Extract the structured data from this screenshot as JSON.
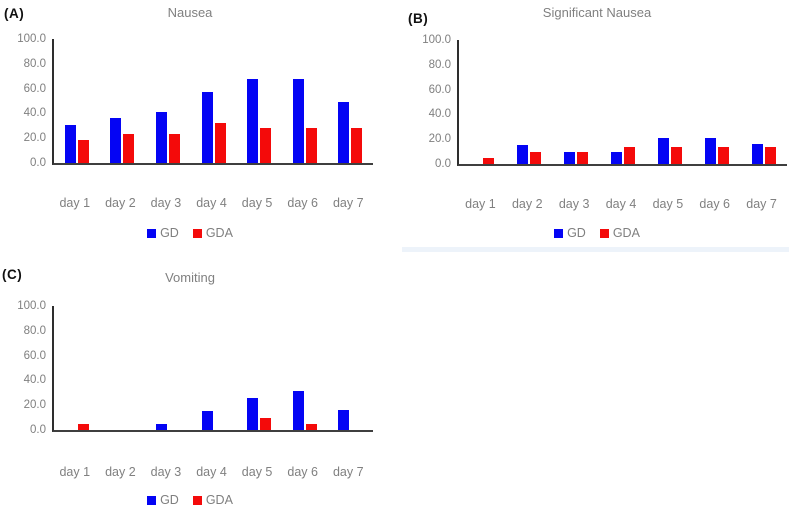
{
  "figure": {
    "background": "#ffffff",
    "divider_band_color": "#edf3fa"
  },
  "colors": {
    "gd": "#0404f4",
    "gda": "#f40a0a",
    "axis": "#2e2e2e",
    "label_text": "#7f7f7f",
    "title_text": "#808080",
    "panel_letter": "#111111"
  },
  "chart_data": [
    {
      "type": "bar",
      "panel_label": "(A)",
      "title": "Nausea",
      "categories": [
        "day 1",
        "day 2",
        "day 3",
        "day 4",
        "day 5",
        "day 6",
        "day 7"
      ],
      "series": [
        {
          "name": "GD",
          "color_key": "gd",
          "values": [
            31.0,
            36.0,
            41.5,
            57.0,
            68.0,
            68.0,
            49.0
          ]
        },
        {
          "name": "GDA",
          "color_key": "gda",
          "values": [
            18.5,
            23.5,
            23.5,
            32.5,
            28.5,
            28.5,
            28.5
          ]
        }
      ],
      "ylim": [
        0,
        100
      ],
      "ytick_labels": [
        "100.0",
        "80.0",
        "60.0",
        "40.0",
        "20.0",
        "0.0"
      ],
      "grid": false,
      "legend_position": "bottom"
    },
    {
      "type": "bar",
      "panel_label": "(B)",
      "title": "Significant Nausea",
      "categories": [
        "day 1",
        "day 2",
        "day 3",
        "day 4",
        "day 5",
        "day 6",
        "day 7"
      ],
      "series": [
        {
          "name": "GD",
          "color_key": "gd",
          "values": [
            0.0,
            15.0,
            10.0,
            10.0,
            21.0,
            21.0,
            16.5
          ]
        },
        {
          "name": "GDA",
          "color_key": "gda",
          "values": [
            5.0,
            9.5,
            9.5,
            14.0,
            14.0,
            14.0,
            14.0
          ]
        }
      ],
      "ylim": [
        0,
        100
      ],
      "ytick_labels": [
        "100.0",
        "80.0",
        "60.0",
        "40.0",
        "20.0",
        "0.0"
      ],
      "grid": false,
      "legend_position": "bottom"
    },
    {
      "type": "bar",
      "panel_label": "(C)",
      "title": "Vomiting",
      "categories": [
        "day 1",
        "day 2",
        "day 3",
        "day 4",
        "day 5",
        "day 6",
        "day 7"
      ],
      "series": [
        {
          "name": "GD",
          "color_key": "gd",
          "values": [
            0.0,
            0.0,
            5.0,
            15.5,
            26.0,
            31.5,
            16.5
          ]
        },
        {
          "name": "GDA",
          "color_key": "gda",
          "values": [
            5.0,
            0.0,
            0.0,
            0.0,
            9.5,
            5.0,
            0.0
          ]
        }
      ],
      "ylim": [
        0,
        100
      ],
      "ytick_labels": [
        "100.0",
        "80.0",
        "60.0",
        "40.0",
        "20.0",
        "0.0"
      ],
      "grid": false,
      "legend_position": "bottom"
    }
  ]
}
